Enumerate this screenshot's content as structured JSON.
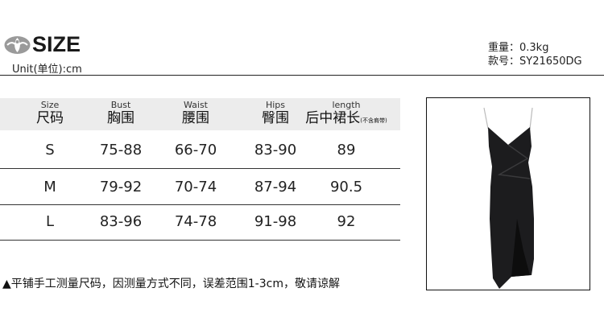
{
  "header": {
    "logo_text": "SIZE",
    "unit": "Unit(单位):cm",
    "weight": "重量：0.3kg",
    "style_no": "款号：SY21650DG"
  },
  "table": {
    "columns": [
      {
        "en": "Size",
        "zh": "尺码",
        "note": ""
      },
      {
        "en": "Bust",
        "zh": "胸围",
        "note": ""
      },
      {
        "en": "Waist",
        "zh": "腰围",
        "note": ""
      },
      {
        "en": "Hips",
        "zh": "臀围",
        "note": ""
      },
      {
        "en": "length",
        "zh": "后中裙长",
        "note": "(不含肩带)"
      }
    ],
    "rows": [
      [
        "S",
        "75-88",
        "66-70",
        "83-90",
        "89"
      ],
      [
        "M",
        "79-92",
        "70-74",
        "87-94",
        "90.5"
      ],
      [
        "L",
        "83-96",
        "74-78",
        "91-98",
        "92"
      ]
    ]
  },
  "footnote": "▲平铺手工测量尺码，因测量方式不同，误差范围1-3cm，敬请谅解",
  "colors": {
    "header_band": "#ececec",
    "dress": "#1c1c1e"
  }
}
